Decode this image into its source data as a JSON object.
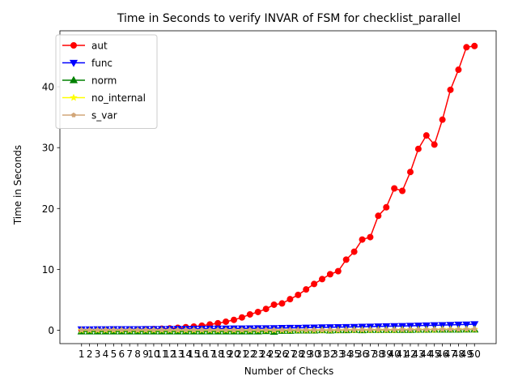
{
  "chart_data": {
    "type": "line",
    "title": "Time in Seconds to verify INVAR of FSM for checklist_parallel",
    "xlabel": "Number of Checks",
    "ylabel": "Time in Seconds",
    "x": [
      1,
      2,
      3,
      4,
      5,
      6,
      7,
      8,
      9,
      10,
      11,
      12,
      13,
      14,
      15,
      16,
      17,
      18,
      19,
      20,
      21,
      22,
      23,
      24,
      25,
      26,
      27,
      28,
      29,
      30,
      31,
      32,
      33,
      34,
      35,
      36,
      37,
      38,
      39,
      40,
      41,
      42,
      43,
      44,
      45,
      46,
      47,
      48,
      49,
      50
    ],
    "ylim": [
      -2.2,
      49.2
    ],
    "yticks": [
      0,
      10,
      20,
      30,
      40
    ],
    "legend_position": "upper-left",
    "series": [
      {
        "name": "aut",
        "color": "#ff0000",
        "marker": "circle",
        "values": [
          0.05,
          0.06,
          0.07,
          0.08,
          0.09,
          0.1,
          0.12,
          0.14,
          0.17,
          0.2,
          0.25,
          0.3,
          0.4,
          0.5,
          0.6,
          0.75,
          0.95,
          1.15,
          1.4,
          1.7,
          2.1,
          2.6,
          3.0,
          3.5,
          4.2,
          4.4,
          5.1,
          5.8,
          6.7,
          7.6,
          8.4,
          9.2,
          9.7,
          11.6,
          12.9,
          14.9,
          15.3,
          18.8,
          20.2,
          23.3,
          22.9,
          26.0,
          29.8,
          32.0,
          30.5,
          34.6,
          39.5,
          42.8,
          46.5,
          46.7
        ]
      },
      {
        "name": "func",
        "color": "#0000ff",
        "marker": "triangle-down",
        "values": [
          0.15,
          0.15,
          0.16,
          0.16,
          0.17,
          0.17,
          0.18,
          0.18,
          0.19,
          0.19,
          0.2,
          0.21,
          0.22,
          0.23,
          0.24,
          0.25,
          0.26,
          0.27,
          0.28,
          0.29,
          0.3,
          0.31,
          0.32,
          0.33,
          0.35,
          0.37,
          0.39,
          0.4,
          0.42,
          0.45,
          0.47,
          0.49,
          0.51,
          0.53,
          0.55,
          0.58,
          0.6,
          0.63,
          0.66,
          0.68,
          0.7,
          0.73,
          0.76,
          0.79,
          0.82,
          0.85,
          0.88,
          0.92,
          0.95,
          1.0
        ]
      },
      {
        "name": "norm",
        "color": "#008000",
        "marker": "triangle-up",
        "values": [
          -0.2,
          -0.2,
          -0.2,
          -0.2,
          -0.2,
          -0.2,
          -0.2,
          -0.2,
          -0.2,
          -0.2,
          -0.2,
          -0.2,
          -0.2,
          -0.2,
          -0.2,
          -0.2,
          -0.2,
          -0.2,
          -0.2,
          -0.2,
          -0.2,
          -0.2,
          -0.2,
          -0.15,
          -0.25,
          -0.1,
          -0.1,
          -0.05,
          -0.05,
          -0.05,
          0.0,
          -0.05,
          0.0,
          0.0,
          0.05,
          0.0,
          0.05,
          0.05,
          0.05,
          0.05,
          0.05,
          0.05,
          0.08,
          0.08,
          0.1,
          0.1,
          0.1,
          0.1,
          0.12,
          0.12
        ]
      },
      {
        "name": "no_internal",
        "color": "#ffff00",
        "marker": "star",
        "values": [
          0.0,
          0.0,
          0.0,
          0.0,
          0.0,
          0.0,
          0.0,
          0.0,
          0.0,
          0.0,
          0.0,
          0.0,
          0.0,
          0.0,
          0.0,
          0.0,
          0.0,
          0.0,
          0.0,
          0.0,
          0.0,
          0.0,
          0.0,
          0.0,
          0.0,
          0.0,
          0.0,
          0.0,
          0.0,
          0.0,
          0.0,
          0.0,
          0.0,
          0.05,
          0.05,
          0.05,
          0.05,
          0.05,
          0.05,
          0.05,
          0.1,
          0.1,
          0.1,
          0.1,
          0.1,
          0.15,
          0.15,
          0.15,
          0.15,
          0.15
        ]
      },
      {
        "name": "s_var",
        "color": "#d2a679",
        "marker": "pentagon",
        "values": [
          0.05,
          0.05,
          0.05,
          0.05,
          0.05,
          0.05,
          0.05,
          0.05,
          0.05,
          0.05,
          0.05,
          0.05,
          0.05,
          0.05,
          0.05,
          0.05,
          0.05,
          0.05,
          0.05,
          0.05,
          0.05,
          0.05,
          0.05,
          0.05,
          0.05,
          0.05,
          0.05,
          0.05,
          0.05,
          0.05,
          0.05,
          0.05,
          0.05,
          0.08,
          0.08,
          0.08,
          0.1,
          0.1,
          0.1,
          0.1,
          0.1,
          0.12,
          0.12,
          0.12,
          0.15,
          0.15,
          0.15,
          0.15,
          0.18,
          0.18
        ]
      }
    ]
  }
}
